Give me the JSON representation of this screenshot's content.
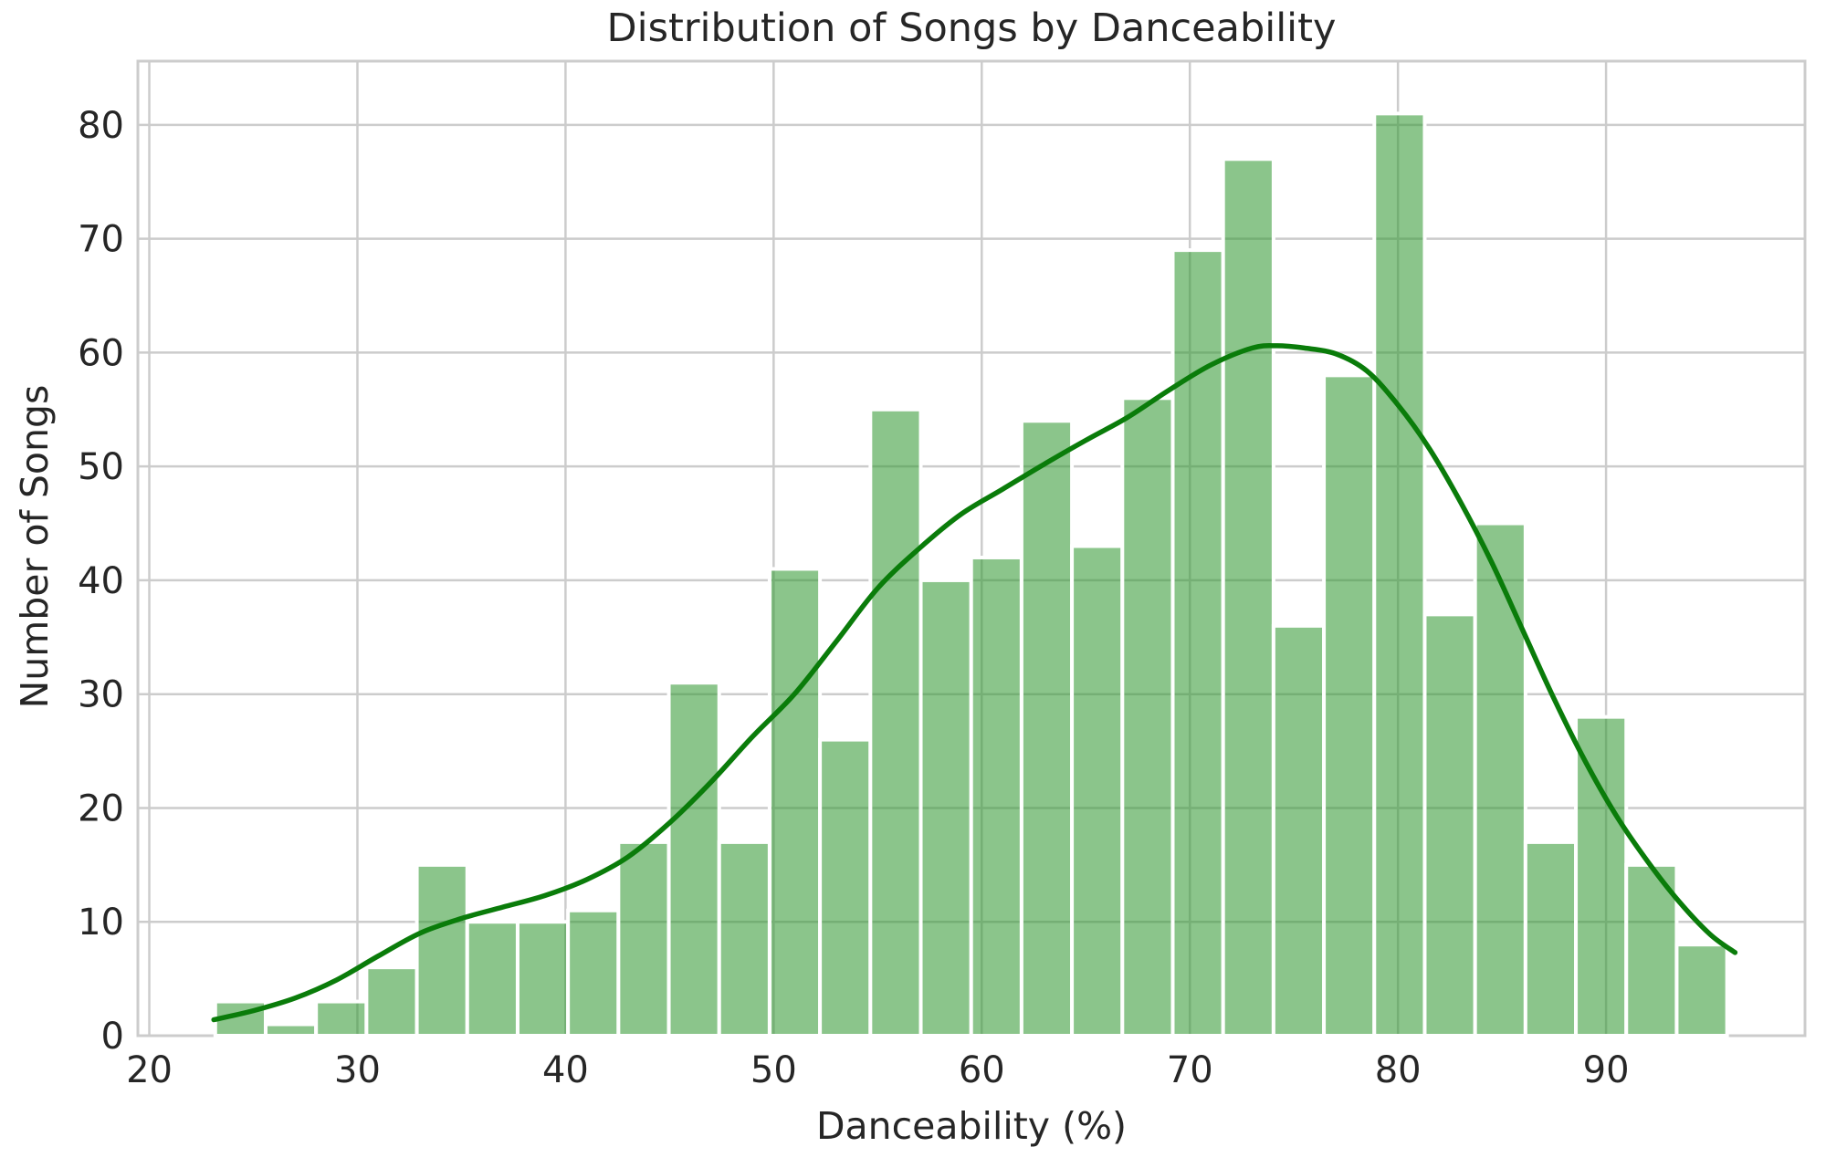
{
  "chart_data": {
    "type": "bar",
    "subtype": "histogram_with_kde",
    "title": "Distribution of Songs by Danceability",
    "xlabel": "Danceability (%)",
    "ylabel": "Number of Songs",
    "bins": {
      "start": 23.17,
      "width": 2.4215,
      "count": 30
    },
    "values": [
      3,
      1,
      3,
      6,
      15,
      10,
      10,
      11,
      17,
      31,
      17,
      41,
      26,
      55,
      40,
      42,
      54,
      43,
      56,
      69,
      77,
      36,
      58,
      81,
      37,
      45,
      17,
      28,
      15,
      8
    ],
    "kde_curve": [
      [
        23.1,
        1.4
      ],
      [
        25,
        2.2
      ],
      [
        27,
        3.3
      ],
      [
        29,
        4.9
      ],
      [
        31,
        7.0
      ],
      [
        33,
        9.0
      ],
      [
        35,
        10.3
      ],
      [
        37,
        11.3
      ],
      [
        39,
        12.3
      ],
      [
        41,
        13.7
      ],
      [
        43,
        15.7
      ],
      [
        45,
        18.7
      ],
      [
        47,
        22.3
      ],
      [
        49,
        26.3
      ],
      [
        51,
        30.0
      ],
      [
        53,
        34.6
      ],
      [
        55,
        39.3
      ],
      [
        57,
        42.8
      ],
      [
        59,
        45.8
      ],
      [
        61,
        48.0
      ],
      [
        63,
        50.2
      ],
      [
        65,
        52.3
      ],
      [
        67,
        54.3
      ],
      [
        69,
        56.7
      ],
      [
        71,
        58.9
      ],
      [
        73,
        60.4
      ],
      [
        74.2,
        60.6
      ],
      [
        75.5,
        60.4
      ],
      [
        77,
        59.9
      ],
      [
        78.5,
        58.4
      ],
      [
        80,
        55.4
      ],
      [
        81.5,
        51.6
      ],
      [
        83,
        46.9
      ],
      [
        84.5,
        41.6
      ],
      [
        86,
        35.6
      ],
      [
        87.5,
        29.6
      ],
      [
        89,
        24.1
      ],
      [
        90.5,
        19.3
      ],
      [
        92,
        15.3
      ],
      [
        93.5,
        11.8
      ],
      [
        95,
        8.9
      ],
      [
        96.2,
        7.3
      ]
    ],
    "xlim": [
      19.45,
      99.56
    ],
    "ylim": [
      0,
      85.6
    ],
    "xticks": [
      20,
      30,
      40,
      50,
      60,
      70,
      80,
      90
    ],
    "yticks": [
      0,
      10,
      20,
      30,
      40,
      50,
      60,
      70,
      80
    ],
    "grid": true,
    "legend": null,
    "colors": {
      "bar_fill": "rgba(51,153,51,0.57)",
      "bar_edge": "#ffffff",
      "kde_line": "#0a7c0a",
      "grid_line": "#cccccc",
      "axes_edge": "#cccccc",
      "text": "#262626",
      "background": "#ffffff"
    }
  }
}
